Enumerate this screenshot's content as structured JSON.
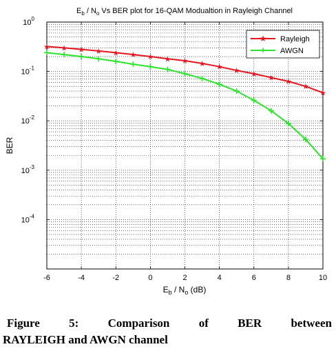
{
  "chart_data": {
    "type": "line",
    "title": "E_b / N_o Vs BER plot for 16-QAM Modualtion in Rayleigh Channel",
    "title_parts": {
      "pre": "E",
      "sub1": "b",
      "mid": " / N",
      "sub2": "o",
      "post": " Vs BER plot for 16-QAM Modualtion in Rayleigh Channel"
    },
    "xlabel": "E_b / N_o (dB)",
    "xlabel_parts": {
      "pre": "E",
      "sub1": "b",
      "mid": " / N",
      "sub2": "o",
      "post": " (dB)"
    },
    "ylabel": "BER",
    "x_scale": "linear",
    "y_scale": "log",
    "xlim": [
      -6,
      10
    ],
    "ylim": [
      1e-05,
      1
    ],
    "x_ticks": [
      -6,
      -4,
      -2,
      0,
      2,
      4,
      6,
      8,
      10
    ],
    "x_tick_labels": [
      "-6",
      "-4",
      "-2",
      "0",
      "2",
      "4",
      "6",
      "8",
      "10"
    ],
    "y_ticks": [
      1,
      0.1,
      0.01,
      0.001,
      0.0001
    ],
    "y_tick_labels": [
      {
        "base": "10",
        "exp": "0"
      },
      {
        "base": "10",
        "exp": "-1"
      },
      {
        "base": "10",
        "exp": "-2"
      },
      {
        "base": "10",
        "exp": "-3"
      },
      {
        "base": "10",
        "exp": "-4"
      }
    ],
    "grid": true,
    "legend_position": "top-right",
    "x": [
      -6,
      -5,
      -4,
      -3,
      -2,
      -1,
      0,
      1,
      2,
      3,
      4,
      5,
      6,
      7,
      8,
      9,
      10
    ],
    "series": [
      {
        "name": "Rayleigh",
        "color": "#e8141e",
        "marker": "star",
        "values": [
          0.32,
          0.3,
          0.28,
          0.26,
          0.24,
          0.22,
          0.2,
          0.18,
          0.165,
          0.145,
          0.125,
          0.105,
          0.09,
          0.075,
          0.063,
          0.05,
          0.037
        ]
      },
      {
        "name": "AWGN",
        "color": "#28e628",
        "marker": "plus",
        "values": [
          0.24,
          0.22,
          0.2,
          0.18,
          0.16,
          0.14,
          0.125,
          0.11,
          0.09,
          0.072,
          0.055,
          0.04,
          0.026,
          0.016,
          0.0088,
          0.0042,
          0.0017
        ]
      }
    ]
  },
  "caption": {
    "line1_words": [
      "Figure",
      "5:",
      "Comparison",
      "of",
      "BER",
      "between"
    ],
    "line2": "RAYLEIGH and AWGN channel"
  }
}
